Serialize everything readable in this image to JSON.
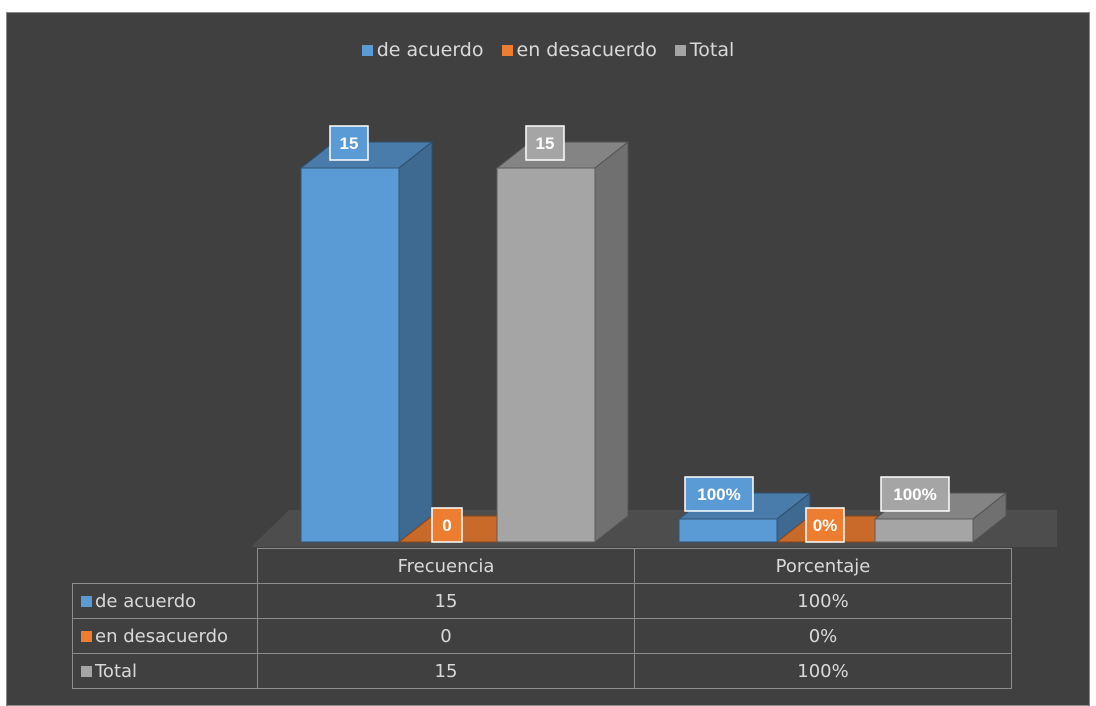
{
  "chart_data": {
    "type": "bar",
    "categories": [
      "Frecuencia",
      "Porcentaje"
    ],
    "series": [
      {
        "name": "de acuerdo",
        "color": "#5b9bd5",
        "values": [
          15,
          1.0
        ],
        "labels": [
          "15",
          "100%"
        ]
      },
      {
        "name": "en desacuerdo",
        "color": "#ed7d31",
        "values": [
          0,
          0.0
        ],
        "labels": [
          "0",
          "0%"
        ]
      },
      {
        "name": "Total",
        "color": "#a5a5a5",
        "values": [
          15,
          1.0
        ],
        "labels": [
          "15",
          "100%"
        ]
      }
    ],
    "legend": "top",
    "grid": false,
    "ylim": [
      0,
      15
    ]
  },
  "table": {
    "rows": [
      {
        "label": "de acuerdo",
        "color": "#5b9bd5",
        "values": [
          "15",
          "100%"
        ]
      },
      {
        "label": "en desacuerdo",
        "color": "#ed7d31",
        "values": [
          "0",
          "0%"
        ]
      },
      {
        "label": "Total",
        "color": "#a5a5a5",
        "values": [
          "15",
          "100%"
        ]
      }
    ]
  }
}
